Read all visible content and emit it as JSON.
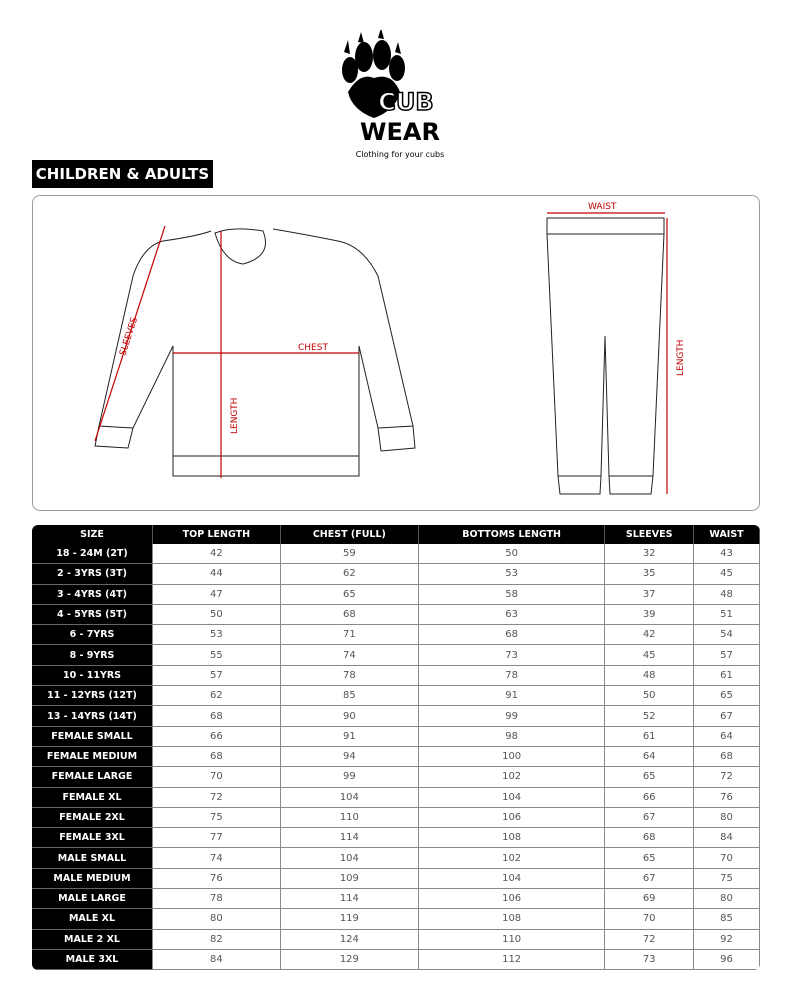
{
  "logo": {
    "line1": "CUB",
    "line2": "WEAR",
    "tagline": "Clothing for your cubs"
  },
  "section_title": "CHILDREN & ADULTS",
  "diagram": {
    "sleeves": "SLEEVES",
    "chest": "CHEST",
    "length_top": "LENGTH",
    "waist": "WAIST",
    "length_bottom": "LENGTH",
    "measure_color": "#c00000"
  },
  "table": {
    "headers": [
      "SIZE",
      "TOP LENGTH",
      "CHEST (FULL)",
      "BOTTOMS LENGTH",
      "SLEEVES",
      "WAIST"
    ],
    "rows": [
      [
        "18 - 24M (2T)",
        "42",
        "59",
        "50",
        "32",
        "43"
      ],
      [
        "2 - 3YRS (3T)",
        "44",
        "62",
        "53",
        "35",
        "45"
      ],
      [
        "3 - 4YRS (4T)",
        "47",
        "65",
        "58",
        "37",
        "48"
      ],
      [
        "4 - 5YRS (5T)",
        "50",
        "68",
        "63",
        "39",
        "51"
      ],
      [
        "6 - 7YRS",
        "53",
        "71",
        "68",
        "42",
        "54"
      ],
      [
        "8 - 9YRS",
        "55",
        "74",
        "73",
        "45",
        "57"
      ],
      [
        "10 - 11YRS",
        "57",
        "78",
        "78",
        "48",
        "61"
      ],
      [
        "11 - 12YRS (12T)",
        "62",
        "85",
        "91",
        "50",
        "65"
      ],
      [
        "13 - 14YRS (14T)",
        "68",
        "90",
        "99",
        "52",
        "67"
      ],
      [
        "FEMALE SMALL",
        "66",
        "91",
        "98",
        "61",
        "64"
      ],
      [
        "FEMALE MEDIUM",
        "68",
        "94",
        "100",
        "64",
        "68"
      ],
      [
        "FEMALE LARGE",
        "70",
        "99",
        "102",
        "65",
        "72"
      ],
      [
        "FEMALE XL",
        "72",
        "104",
        "104",
        "66",
        "76"
      ],
      [
        "FEMALE 2XL",
        "75",
        "110",
        "106",
        "67",
        "80"
      ],
      [
        "FEMALE 3XL",
        "77",
        "114",
        "108",
        "68",
        "84"
      ],
      [
        "MALE SMALL",
        "74",
        "104",
        "102",
        "65",
        "70"
      ],
      [
        "MALE MEDIUM",
        "76",
        "109",
        "104",
        "67",
        "75"
      ],
      [
        "MALE LARGE",
        "78",
        "114",
        "106",
        "69",
        "80"
      ],
      [
        "MALE XL",
        "80",
        "119",
        "108",
        "70",
        "85"
      ],
      [
        "MALE 2 XL",
        "82",
        "124",
        "110",
        "72",
        "92"
      ],
      [
        "MALE 3XL",
        "84",
        "129",
        "112",
        "73",
        "96"
      ]
    ]
  }
}
